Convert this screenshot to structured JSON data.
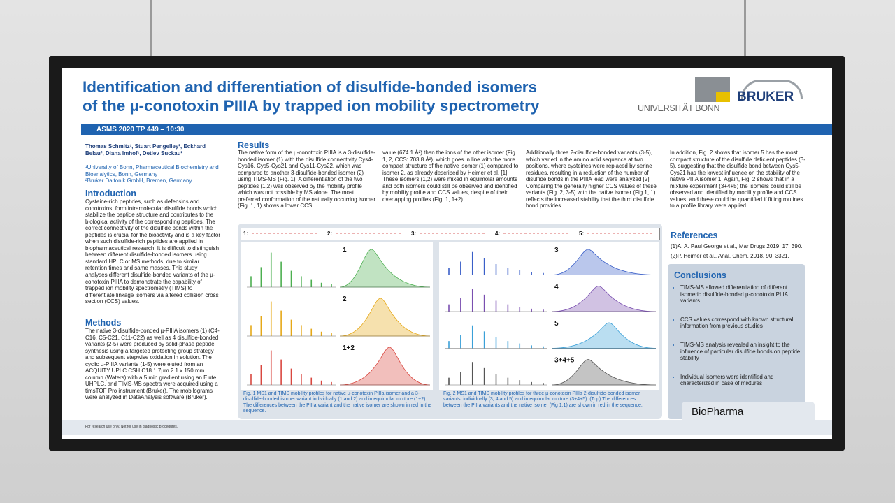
{
  "header": {
    "title_line1": "Identification and differentiation of disulfide-bonded isomers",
    "title_line2": "of the µ-conotoxin PIIIA by trapped ion mobility spectrometry",
    "logo_uni": "UNIVERSITÄT BONN",
    "logo_bruker": "BRUKER",
    "session": "ASMS 2020 TP 449 – 10:30"
  },
  "authors": {
    "names": "Thomas Schmitz¹, Stuart Pengelley², Eckhard Belau², Diana Imhof¹, Detlev Suckau²",
    "affil1": "¹University of Bonn, Pharmaceutical Biochemistry and Bioanalytics, Bonn, Germany",
    "affil2": "²Bruker Daltonik GmbH, Bremen, Germany"
  },
  "intro": {
    "heading": "Introduction",
    "text": "Cysteine-rich peptides, such as defensins and conotoxins, form intramolecular disulfide bonds which stabilize the peptide structure and contributes to the biological activity of the corresponding peptides. The correct connectivity of the disulfide bonds within the peptides is crucial for the bioactivity and is a key factor when such disulfide-rich peptides are applied in biopharmaceutical research. It is difficult to distinguish between different disulfide-bonded isomers using standard HPLC or MS methods, due to similar retention times and same masses. This study analyses different disulfide-bonded variants of the µ-conotoxin PIIIA to demonstrate the capability of trapped ion mobility spectrometry (TIMS) to differentiate linkage isomers via altered collision cross section (CCS) values."
  },
  "methods": {
    "heading": "Methods",
    "text": "The native 3-disulfide-bonded µ-PIIIA isomers (1) (C4-C16, C5-C21, C11-C22) as well as 4 disulfide-bonded variants (2-5) were produced by solid-phase peptide synthesis using a targeted protecting group strategy and subsequent stepwise oxidation in solution. The cyclic µ-PIIIA variants (1-5) were eluted from an ACQUITY UPLC CSH C18 1.7µm 2.1 x 150 mm column (Waters) with a 5 min gradient using an Elute UHPLC, and TIMS-MS spectra were acquired using a timsTOF Pro instrument (Bruker). The mobilograms were analyzed in DataAnalysis software (Bruker)."
  },
  "results": {
    "heading": "Results",
    "col1": "The native form of the µ-conotoxin PIIIA is a 3-disulfide-bonded isomer (1) with the disulfide connectivity Cys4-Cys16, Cys5-Cys21 and Cys11-Cys22, which was compared to another 3-disulfide-bonded isomer (2) using TIMS-MS (Fig. 1). A differentiation of the two peptides (1,2) was observed by the mobility profile which was not possible by MS alone. The most preferred conformation of the naturally occurring isomer (Fig. 1, 1) shows a lower CCS",
    "col2": "value (674.1 Å²) than the ions of the other isomer (Fig. 1, 2, CCS: 703.8 Å²), which goes in line with the more compact structure of the native isomer (1) compared to isomer 2, as already described by Heimer et al. [1]. These isomers (1,2) were mixed in equimolar amounts and both isomers could still be observed and identified by mobility profile and CCS values, despite of their overlapping profiles (Fig. 1, 1+2).",
    "col3": "Additionally three 2-disulfide-bonded variants (3-5), which varied in the amino acid sequence at two positions, where cysteines were replaced by serine residues, resulting in a reduction of the number of disulfide bonds in the PIIIA lead were analyzed [2]. Comparing the generally higher CCS values of these variants (Fig. 2, 3-5) with the native isomer (Fig 1, 1) reflects the increased stability that the third disulfide bond provides.",
    "col4": "In addition, Fig. 2 shows that isomer 5 has the most compact structure of the disulfide deficient peptides (3-5), suggesting that the disulfide bond between Cys5-Cys21 has the lowest influence on the stability of the native PIIIA isomer 1. Again, Fig. 2 shows that in a mixture experiment (3+4+5) the isomers could still be observed and identified by mobility profile and CCS values, and these could be quantified if fitting routines to a profile library were applied."
  },
  "figure": {
    "sequences": [
      "1:",
      "2:",
      "3:",
      "4:",
      "5:"
    ],
    "panels_left": [
      "1",
      "2",
      "1+2"
    ],
    "panels_right": [
      "3",
      "4",
      "5",
      "3+4+5"
    ],
    "caption1": "Fig. 1 MS1 and TIMS mobility profiles for native µ-conotoxin PIIIa isomer and a 3-disulfide-bonded isomer variant individually (1 and 2) and in equimolar mixture (1+2). The differences between the PIIIa variant and the native isomer are shown in red in the sequence.",
    "caption2": "Fig. 2 MS1 and TIMS mobility profiles for three µ-conotoxin PIIIa 2-disulfide-bonded isomer variants, individually (3, 4 and 5) and in equimolar mixture (3+4+5). (Top) The differences between the PIIIa variants and the native isomer (Fig 1,1) are shown in red in the sequence."
  },
  "references": {
    "heading": "References",
    "items": [
      "(1)A. A. Paul George et al., Mar Drugs 2019, 17, 390.",
      "(2)P. Heimer et al., Anal. Chem. 2018, 90, 3321."
    ]
  },
  "conclusions": {
    "heading": "Conclusions",
    "items": [
      "TIMS-MS allowed differentiation of different isomeric disulfide-bonded µ-conotoxin PIIIA variants",
      "CCS values correspond with known structural information from previous studies",
      "TIMS-MS analysis revealed an insight to the influence of particular disulfide bonds on peptide stability",
      "Individual isomers were identified and characterized in case of mixtures"
    ]
  },
  "footer": {
    "brand": "BioPharma",
    "disclaimer": "For research use only. Not for use in diagnostic procedures."
  }
}
